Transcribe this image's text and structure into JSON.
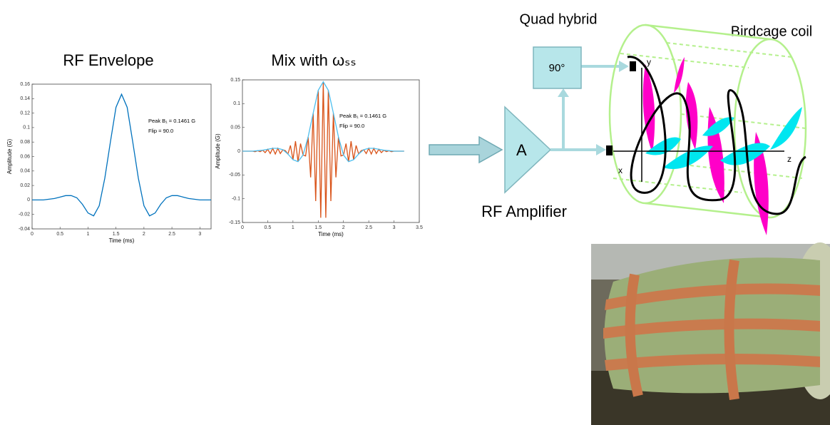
{
  "chart_data": [
    {
      "type": "line",
      "title": "RF Envelope",
      "xlabel": "Time (ms)",
      "ylabel": "Amplitude (G)",
      "annotations": [
        "Peak B₁ = 0.1461 G",
        "Flip = 90.0"
      ],
      "xlim": [
        0,
        3.2
      ],
      "xticks": [
        0,
        0.5,
        1,
        1.5,
        2,
        2.5,
        3
      ],
      "ylim": [
        -0.04,
        0.16
      ],
      "yticks": [
        -0.04,
        -0.02,
        0,
        0.02,
        0.04,
        0.06,
        0.08,
        0.1,
        0.12,
        0.14,
        0.16
      ],
      "series": [
        {
          "color": "#0072bd",
          "x": [
            0,
            0.1,
            0.2,
            0.3,
            0.4,
            0.5,
            0.6,
            0.7,
            0.8,
            0.9,
            1,
            1.1,
            1.2,
            1.3,
            1.4,
            1.5,
            1.6,
            1.7,
            1.8,
            1.9,
            2,
            2.1,
            2.2,
            2.3,
            2.4,
            2.5,
            2.6,
            2.7,
            2.8,
            2.9,
            3,
            3.1,
            3.2
          ],
          "values": [
            0,
            0,
            0,
            0.001,
            0.002,
            0.004,
            0.006,
            0.006,
            0.003,
            -0.006,
            -0.018,
            -0.022,
            -0.008,
            0.03,
            0.08,
            0.128,
            0.146,
            0.128,
            0.08,
            0.03,
            -0.008,
            -0.022,
            -0.018,
            -0.006,
            0.003,
            0.006,
            0.006,
            0.004,
            0.002,
            0.001,
            0,
            0,
            0
          ]
        }
      ]
    },
    {
      "type": "line",
      "title": "Mix with ωₛₛ",
      "xlabel": "Time (ms)",
      "ylabel": "Amplitude (G)",
      "annotations": [
        "Peak B₁ = 0.1461 G",
        "Flip = 90.0"
      ],
      "xlim": [
        0,
        3.5
      ],
      "xticks": [
        0,
        0.5,
        1,
        1.5,
        2,
        2.5,
        3,
        3.5
      ],
      "ylim": [
        -0.15,
        0.15
      ],
      "yticks": [
        -0.15,
        -0.1,
        -0.05,
        0,
        0.05,
        0.1,
        0.15
      ],
      "series": [
        {
          "color": "#d95319",
          "x": [
            0,
            0.05,
            0.1,
            0.15,
            0.2,
            0.25,
            0.3,
            0.35,
            0.4,
            0.45,
            0.5,
            0.55,
            0.6,
            0.65,
            0.7,
            0.75,
            0.8,
            0.85,
            0.9,
            0.95,
            1,
            1.05,
            1.1,
            1.15,
            1.2,
            1.25,
            1.3,
            1.35,
            1.4,
            1.45,
            1.5,
            1.55,
            1.6,
            1.65,
            1.7,
            1.75,
            1.8,
            1.85,
            1.9,
            1.95,
            2,
            2.05,
            2.1,
            2.15,
            2.2,
            2.25,
            2.3,
            2.35,
            2.4,
            2.45,
            2.5,
            2.55,
            2.6,
            2.65,
            2.7,
            2.75,
            2.8,
            2.85,
            2.9,
            2.95,
            3,
            3.05,
            3.1,
            3.15,
            3.2
          ],
          "values": [
            0,
            0,
            0,
            0,
            0,
            -0.001,
            0.001,
            -0.001,
            0.002,
            -0.003,
            0.004,
            -0.005,
            0.006,
            -0.006,
            0.006,
            -0.005,
            0.003,
            0.001,
            -0.006,
            0.012,
            -0.018,
            0.021,
            -0.022,
            0.016,
            -0.008,
            -0.01,
            0.03,
            -0.055,
            0.08,
            -0.105,
            0.128,
            -0.14,
            0.146,
            -0.14,
            0.128,
            -0.105,
            0.08,
            -0.055,
            0.03,
            -0.01,
            -0.008,
            0.016,
            -0.022,
            0.021,
            -0.018,
            0.012,
            -0.006,
            0.001,
            0.003,
            -0.005,
            0.006,
            -0.006,
            0.006,
            -0.005,
            0.004,
            -0.003,
            0.002,
            -0.001,
            0.001,
            -0.001,
            0,
            0,
            0,
            0,
            0
          ]
        },
        {
          "color": "#4dbeee",
          "x": [
            0,
            0.1,
            0.2,
            0.3,
            0.4,
            0.5,
            0.6,
            0.7,
            0.8,
            0.9,
            1,
            1.1,
            1.2,
            1.3,
            1.4,
            1.5,
            1.6,
            1.7,
            1.8,
            1.9,
            2,
            2.1,
            2.2,
            2.3,
            2.4,
            2.5,
            2.6,
            2.7,
            2.8,
            2.9,
            3,
            3.1,
            3.2
          ],
          "values": [
            0,
            0,
            0,
            0.001,
            0.002,
            0.004,
            0.006,
            0.006,
            0.003,
            -0.006,
            -0.018,
            -0.022,
            -0.008,
            0.03,
            0.08,
            0.128,
            0.146,
            0.128,
            0.08,
            0.03,
            -0.008,
            -0.022,
            -0.018,
            -0.006,
            0.003,
            0.006,
            0.006,
            0.004,
            0.002,
            0.001,
            0,
            0,
            0
          ]
        }
      ]
    }
  ],
  "diagram": {
    "quad_hybrid": "Quad hybrid",
    "phase": "90°",
    "birdcage_coil": "Birdcage coil",
    "amplifier": {
      "symbol": "A",
      "label": "RF Amplifier"
    },
    "axes": {
      "x": "x",
      "y": "y",
      "z": "z"
    }
  }
}
